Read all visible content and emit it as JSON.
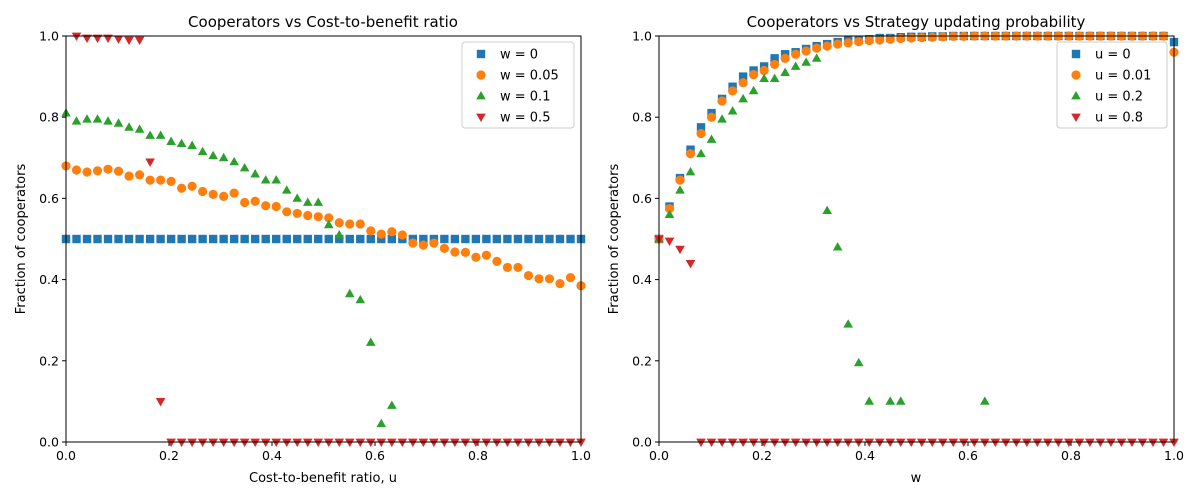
{
  "chart_data": [
    {
      "type": "scatter",
      "title": "Cooperators vs Cost-to-benefit ratio",
      "xlabel": "Cost-to-benefit ratio, u",
      "ylabel": "Fraction of cooperators",
      "xlim": [
        0,
        1
      ],
      "ylim": [
        0,
        1
      ],
      "xticks": [
        "0.0",
        "0.2",
        "0.4",
        "0.6",
        "0.8",
        "1.0"
      ],
      "yticks": [
        "0.0",
        "0.2",
        "0.4",
        "0.6",
        "0.8",
        "1.0"
      ],
      "grid": false,
      "legend_position": "top-right",
      "series": [
        {
          "name": "w = 0",
          "marker": "square",
          "color": "#1f77b4",
          "x": [
            0,
            0.0204,
            0.0408,
            0.0612,
            0.0816,
            0.102,
            0.1224,
            0.1429,
            0.1633,
            0.1837,
            0.2041,
            0.2245,
            0.2449,
            0.2653,
            0.2857,
            0.3061,
            0.3265,
            0.3469,
            0.3673,
            0.3878,
            0.4082,
            0.4286,
            0.449,
            0.4694,
            0.4898,
            0.5102,
            0.5306,
            0.551,
            0.5714,
            0.5918,
            0.6122,
            0.6327,
            0.6531,
            0.6735,
            0.6939,
            0.7143,
            0.7347,
            0.7551,
            0.7755,
            0.7959,
            0.8163,
            0.8367,
            0.8571,
            0.8776,
            0.898,
            0.9184,
            0.9388,
            0.9592,
            0.9796,
            1.0
          ],
          "y": [
            0.5,
            0.5,
            0.5,
            0.5,
            0.5,
            0.5,
            0.5,
            0.5,
            0.5,
            0.5,
            0.5,
            0.5,
            0.5,
            0.5,
            0.5,
            0.5,
            0.5,
            0.5,
            0.5,
            0.5,
            0.5,
            0.5,
            0.5,
            0.5,
            0.5,
            0.5,
            0.5,
            0.5,
            0.5,
            0.5,
            0.5,
            0.5,
            0.5,
            0.5,
            0.5,
            0.5,
            0.5,
            0.5,
            0.5,
            0.5,
            0.5,
            0.5,
            0.5,
            0.5,
            0.5,
            0.5,
            0.5,
            0.5,
            0.5,
            0.5
          ]
        },
        {
          "name": "w = 0.05",
          "marker": "circle",
          "color": "#ff7f0e",
          "x": [
            0,
            0.0204,
            0.0408,
            0.0612,
            0.0816,
            0.102,
            0.1224,
            0.1429,
            0.1633,
            0.1837,
            0.2041,
            0.2245,
            0.2449,
            0.2653,
            0.2857,
            0.3061,
            0.3265,
            0.3469,
            0.3673,
            0.3878,
            0.4082,
            0.4286,
            0.449,
            0.4694,
            0.4898,
            0.5102,
            0.5306,
            0.551,
            0.5714,
            0.5918,
            0.6122,
            0.6327,
            0.6531,
            0.6735,
            0.6939,
            0.7143,
            0.7347,
            0.7551,
            0.7755,
            0.7959,
            0.8163,
            0.8367,
            0.8571,
            0.8776,
            0.898,
            0.9184,
            0.9388,
            0.9592,
            0.9796,
            1.0
          ],
          "y": [
            0.68,
            0.67,
            0.665,
            0.668,
            0.672,
            0.667,
            0.655,
            0.658,
            0.645,
            0.645,
            0.642,
            0.625,
            0.63,
            0.617,
            0.61,
            0.605,
            0.613,
            0.59,
            0.593,
            0.582,
            0.58,
            0.567,
            0.563,
            0.558,
            0.555,
            0.552,
            0.54,
            0.537,
            0.537,
            0.52,
            0.512,
            0.518,
            0.51,
            0.49,
            0.485,
            0.49,
            0.477,
            0.468,
            0.467,
            0.455,
            0.46,
            0.445,
            0.43,
            0.43,
            0.41,
            0.402,
            0.402,
            0.39,
            0.405,
            0.385
          ]
        },
        {
          "name": "w = 0.1",
          "marker": "triangle-up",
          "color": "#2ca02c",
          "x": [
            0,
            0.0204,
            0.0408,
            0.0612,
            0.0816,
            0.102,
            0.1224,
            0.1429,
            0.1633,
            0.1837,
            0.2041,
            0.2245,
            0.2449,
            0.2653,
            0.2857,
            0.3061,
            0.3265,
            0.3469,
            0.3673,
            0.3878,
            0.4082,
            0.4286,
            0.449,
            0.4694,
            0.4898,
            0.5102,
            0.5306,
            0.551,
            0.5714,
            0.5918,
            0.6122,
            0.6327
          ],
          "y": [
            0.81,
            0.79,
            0.795,
            0.795,
            0.79,
            0.785,
            0.775,
            0.77,
            0.755,
            0.755,
            0.74,
            0.735,
            0.73,
            0.715,
            0.705,
            0.7,
            0.69,
            0.675,
            0.66,
            0.645,
            0.645,
            0.62,
            0.6,
            0.59,
            0.59,
            0.535,
            0.51,
            0.365,
            0.35,
            0.245,
            0.045,
            0.09
          ]
        },
        {
          "name": "w = 0.5",
          "marker": "triangle-down",
          "color": "#d62728",
          "x": [
            0.0204,
            0.0408,
            0.0612,
            0.0816,
            0.102,
            0.1224,
            0.1429,
            0.1633,
            0.1837,
            0.2041,
            0.2245,
            0.2449,
            0.2653,
            0.2857,
            0.3061,
            0.3265,
            0.3469,
            0.3673,
            0.3878,
            0.4082,
            0.4286,
            0.449,
            0.4694,
            0.4898,
            0.5102,
            0.5306,
            0.551,
            0.5714,
            0.5918,
            0.6122,
            0.6327,
            0.6531,
            0.6735,
            0.6939,
            0.7143,
            0.7347,
            0.7551,
            0.7755,
            0.7959,
            0.8163,
            0.8367,
            0.8571,
            0.8776,
            0.898,
            0.9184,
            0.9388,
            0.9592,
            0.9796,
            1.0
          ],
          "y": [
            1.0,
            0.995,
            0.995,
            0.995,
            0.993,
            0.99,
            0.99,
            0.69,
            0.1,
            0,
            0,
            0,
            0,
            0,
            0,
            0,
            0,
            0,
            0,
            0,
            0,
            0,
            0,
            0,
            0,
            0,
            0,
            0,
            0,
            0,
            0,
            0,
            0,
            0,
            0,
            0,
            0,
            0,
            0,
            0,
            0,
            0,
            0,
            0,
            0,
            0,
            0,
            0,
            0
          ]
        }
      ]
    },
    {
      "type": "scatter",
      "title": "Cooperators vs Strategy updating probability",
      "xlabel": "w",
      "ylabel": "Fraction of cooperators",
      "xlim": [
        0,
        1
      ],
      "ylim": [
        0,
        1
      ],
      "xticks": [
        "0.0",
        "0.2",
        "0.4",
        "0.6",
        "0.8",
        "1.0"
      ],
      "yticks": [
        "0.0",
        "0.2",
        "0.4",
        "0.6",
        "0.8",
        "1.0"
      ],
      "grid": false,
      "legend_position": "top-right",
      "series": [
        {
          "name": "u = 0",
          "marker": "square",
          "color": "#1f77b4",
          "x": [
            0,
            0.0204,
            0.0408,
            0.0612,
            0.0816,
            0.102,
            0.1224,
            0.1429,
            0.1633,
            0.1837,
            0.2041,
            0.2245,
            0.2449,
            0.2653,
            0.2857,
            0.3061,
            0.3265,
            0.3469,
            0.3673,
            0.3878,
            0.4082,
            0.4286,
            0.449,
            0.4694,
            0.4898,
            0.5102,
            0.5306,
            0.551,
            0.5714,
            0.5918,
            0.6122,
            0.6327,
            0.6531,
            0.6735,
            0.6939,
            0.7143,
            0.7347,
            0.7551,
            0.7755,
            0.7959,
            0.8163,
            0.8367,
            0.8571,
            0.8776,
            0.898,
            0.9184,
            0.9388,
            0.9592,
            0.9796,
            1.0
          ],
          "y": [
            0.5,
            0.58,
            0.65,
            0.72,
            0.775,
            0.81,
            0.845,
            0.875,
            0.9,
            0.915,
            0.925,
            0.945,
            0.955,
            0.96,
            0.968,
            0.975,
            0.98,
            0.985,
            0.99,
            0.99,
            0.992,
            0.995,
            0.995,
            0.997,
            0.998,
            0.998,
            0.999,
            0.999,
            1.0,
            1.0,
            1.0,
            1.0,
            1.0,
            1.0,
            1.0,
            1.0,
            1.0,
            1.0,
            1.0,
            1.0,
            1.0,
            1.0,
            1.0,
            1.0,
            1.0,
            1.0,
            1.0,
            1.0,
            1.0,
            0.985
          ]
        },
        {
          "name": "u = 0.01",
          "marker": "circle",
          "color": "#ff7f0e",
          "x": [
            0,
            0.0204,
            0.0408,
            0.0612,
            0.0816,
            0.102,
            0.1224,
            0.1429,
            0.1633,
            0.1837,
            0.2041,
            0.2245,
            0.2449,
            0.2653,
            0.2857,
            0.3061,
            0.3265,
            0.3469,
            0.3673,
            0.3878,
            0.4082,
            0.4286,
            0.449,
            0.4694,
            0.4898,
            0.5102,
            0.5306,
            0.551,
            0.5714,
            0.5918,
            0.6122,
            0.6327,
            0.6531,
            0.6735,
            0.6939,
            0.7143,
            0.7347,
            0.7551,
            0.7755,
            0.7959,
            0.8163,
            0.8367,
            0.8571,
            0.8776,
            0.898,
            0.9184,
            0.9388,
            0.9592,
            0.9796,
            1.0
          ],
          "y": [
            0.5,
            0.575,
            0.645,
            0.71,
            0.76,
            0.8,
            0.84,
            0.865,
            0.885,
            0.905,
            0.915,
            0.93,
            0.945,
            0.955,
            0.963,
            0.97,
            0.975,
            0.98,
            0.983,
            0.986,
            0.989,
            0.99,
            0.992,
            0.994,
            0.995,
            0.996,
            0.997,
            0.998,
            0.999,
            0.999,
            1.0,
            1.0,
            1.0,
            1.0,
            1.0,
            1.0,
            1.0,
            1.0,
            1.0,
            1.0,
            1.0,
            1.0,
            1.0,
            1.0,
            1.0,
            1.0,
            1.0,
            1.0,
            1.0,
            0.96
          ]
        },
        {
          "name": "u = 0.2",
          "marker": "triangle-up",
          "color": "#2ca02c",
          "x": [
            0,
            0.0204,
            0.0408,
            0.0612,
            0.0816,
            0.102,
            0.1224,
            0.1429,
            0.1633,
            0.1837,
            0.2041,
            0.2245,
            0.2449,
            0.2653,
            0.2857,
            0.3061,
            0.3265,
            0.3469,
            0.3673,
            0.3878,
            0.4082,
            0.449,
            0.4694,
            0.6327
          ],
          "y": [
            0.5,
            0.56,
            0.62,
            0.665,
            0.71,
            0.745,
            0.795,
            0.815,
            0.845,
            0.865,
            0.895,
            0.895,
            0.91,
            0.925,
            0.935,
            0.945,
            0.57,
            0.48,
            0.29,
            0.195,
            0.1,
            0.1,
            0.1,
            0.1
          ]
        },
        {
          "name": "u = 0.8",
          "marker": "triangle-down",
          "color": "#d62728",
          "x": [
            0,
            0.0204,
            0.0408,
            0.0612,
            0.0816,
            0.102,
            0.1224,
            0.1429,
            0.1633,
            0.1837,
            0.2041,
            0.2245,
            0.2449,
            0.2653,
            0.2857,
            0.3061,
            0.3265,
            0.3469,
            0.3673,
            0.3878,
            0.4082,
            0.4286,
            0.449,
            0.4694,
            0.4898,
            0.5102,
            0.5306,
            0.551,
            0.5714,
            0.5918,
            0.6122,
            0.6327,
            0.6531,
            0.6735,
            0.6939,
            0.7143,
            0.7347,
            0.7551,
            0.7755,
            0.7959,
            0.8163,
            0.8367,
            0.8571,
            0.8776,
            0.898,
            0.9184,
            0.9388,
            0.9592,
            0.9796,
            1.0
          ],
          "y": [
            0.5,
            0.495,
            0.475,
            0.44,
            0,
            0,
            0,
            0,
            0,
            0,
            0,
            0,
            0,
            0,
            0,
            0,
            0,
            0,
            0,
            0,
            0,
            0,
            0,
            0,
            0,
            0,
            0,
            0,
            0,
            0,
            0,
            0,
            0,
            0,
            0,
            0,
            0,
            0,
            0,
            0,
            0,
            0,
            0,
            0,
            0,
            0,
            0,
            0,
            0,
            0
          ]
        }
      ]
    }
  ]
}
